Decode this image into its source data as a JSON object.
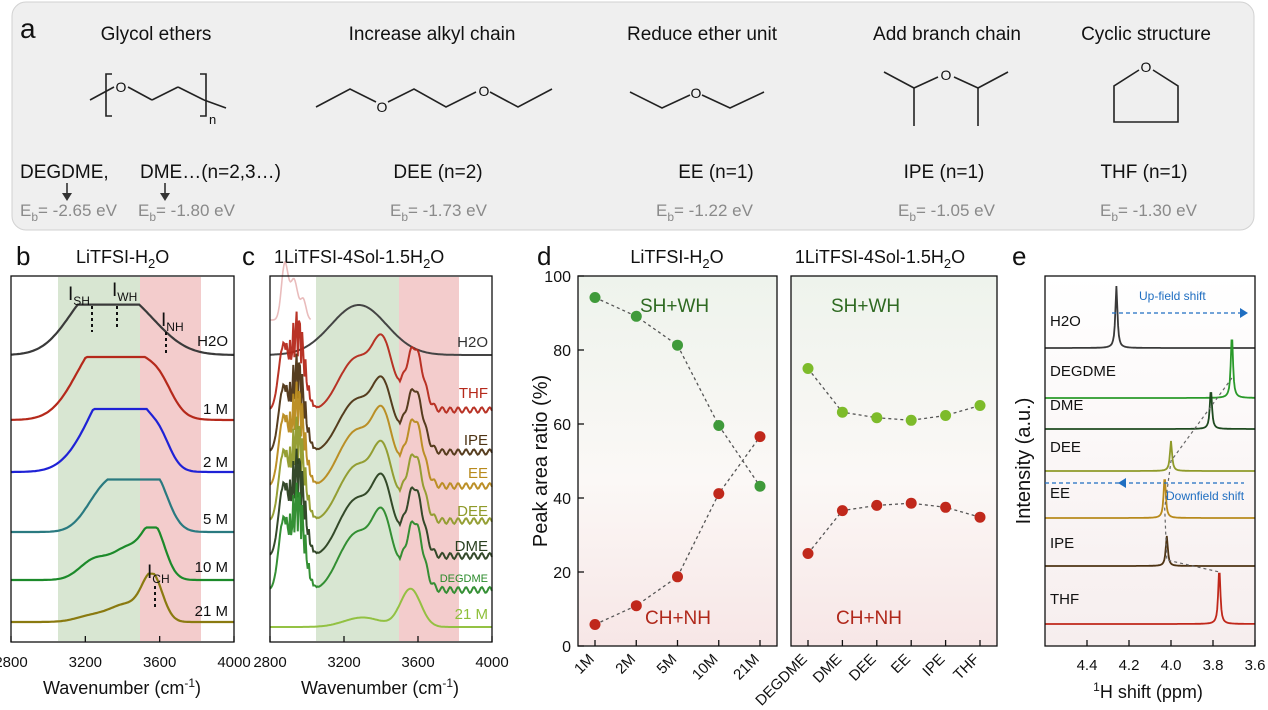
{
  "panel_a": {
    "letter": "a",
    "columns": [
      {
        "header": "Glycol ethers",
        "name": "DEGDME,",
        "name2": "DME…(n=2,3…)",
        "energy": "= -2.65 eV",
        "energy2": "= -1.80 eV"
      },
      {
        "header": "Increase alkyl chain",
        "name": "DEE (n=2)",
        "energy": "= -1.73 eV"
      },
      {
        "header": "Reduce ether unit",
        "name": "EE (n=1)",
        "energy": "= -1.22 eV"
      },
      {
        "header": "Add branch chain",
        "name": "IPE (n=1)",
        "energy": "= -1.05 eV"
      },
      {
        "header": "Cyclic structure",
        "name": "THF (n=1)",
        "energy": "= -1.30 eV"
      }
    ],
    "eb_symbol": "E",
    "eb_sub": "b",
    "repeat_label": "n",
    "atom_label": "O"
  },
  "chart_data": [
    {
      "panel": "b",
      "type": "line",
      "title": "LiTFSI-H2O",
      "xlabel": "Wavenumber (cm-1)",
      "xlim": [
        2800,
        4000
      ],
      "x_ticks": [
        "2800",
        "3200",
        "3600",
        "4000"
      ],
      "shaded_regions": [
        {
          "from": 3000,
          "to": 3480,
          "color": "#d8e6d2"
        },
        {
          "from": 3480,
          "to": 3800,
          "color": "#f3cccc"
        }
      ],
      "annotations": [
        "ISH",
        "IWH",
        "INH",
        "ICH"
      ],
      "series": [
        {
          "name": "H2O",
          "color": "#3a3a3a"
        },
        {
          "name": "1 M",
          "color": "#b5291b"
        },
        {
          "name": "2 M",
          "color": "#1f22d6"
        },
        {
          "name": "5 M",
          "color": "#2a7a80"
        },
        {
          "name": "10 M",
          "color": "#1c8a2a"
        },
        {
          "name": "21 M",
          "color": "#8a7a10"
        }
      ]
    },
    {
      "panel": "c",
      "type": "line",
      "title": "1LiTFSI-4Sol-1.5H2O",
      "xlabel": "Wavenumber (cm-1)",
      "xlim": [
        2800,
        4000
      ],
      "x_ticks": [
        "2800",
        "3200",
        "3600",
        "4000"
      ],
      "shaded_regions": [
        {
          "from": 3000,
          "to": 3480,
          "color": "#d8e6d2"
        },
        {
          "from": 3480,
          "to": 3800,
          "color": "#f3cccc"
        }
      ],
      "series": [
        {
          "name": "H2O",
          "color": "#444444"
        },
        {
          "name": "THF",
          "color": "#b5291b"
        },
        {
          "name": "IPE",
          "color": "#4e3414"
        },
        {
          "name": "EE",
          "color": "#b88a1c"
        },
        {
          "name": "DEE",
          "color": "#8f9a2a"
        },
        {
          "name": "DME",
          "color": "#2a4020"
        },
        {
          "name": "DEGDME",
          "color": "#2a8a2a"
        },
        {
          "name": "21 M",
          "color": "#8ebf3a"
        }
      ]
    },
    {
      "panel": "d",
      "type": "scatter",
      "ylabel": "Peak area ratio (%)",
      "ylim": [
        0,
        100
      ],
      "y_ticks": [
        "0",
        "20",
        "40",
        "60",
        "80",
        "100"
      ],
      "subplots": [
        {
          "title": "LiTFSI-H2O",
          "categories": [
            "1M",
            "2M",
            "5M",
            "10M",
            "21M"
          ],
          "series": [
            {
              "name": "SH+WH",
              "color": "#3f9a3a",
              "values": [
                94.2,
                89.1,
                81.3,
                59.6,
                43.2
              ]
            },
            {
              "name": "CH+NH",
              "color": "#c0281b",
              "values": [
                5.8,
                10.9,
                18.7,
                41.2,
                56.6
              ]
            }
          ]
        },
        {
          "title": "1LiTFSI-4Sol-1.5H2O",
          "categories": [
            "DEGDME",
            "DME",
            "DEE",
            "EE",
            "IPE",
            "THF"
          ],
          "series": [
            {
              "name": "SH+WH",
              "color": "#7dbb2a",
              "values": [
                75.0,
                63.2,
                61.7,
                61.0,
                62.3,
                65.0
              ]
            },
            {
              "name": "CH+NH",
              "color": "#c0281b",
              "values": [
                25.0,
                36.6,
                38.0,
                38.6,
                37.5,
                34.8
              ]
            }
          ]
        }
      ]
    },
    {
      "panel": "e",
      "type": "line",
      "xlabel": "1H shift (ppm)",
      "ylabel": "Intensity (a.u.)",
      "xlim": [
        4.6,
        3.6
      ],
      "x_ticks": [
        "4.4",
        "4.2",
        "4.0",
        "3.8",
        "3.6"
      ],
      "annotations": [
        "Up-field shift",
        "Downfield shift"
      ],
      "series": [
        {
          "name": "H2O",
          "color": "#3a3a3a",
          "peak_ppm": 4.26
        },
        {
          "name": "DEGDME",
          "color": "#2a9a2a",
          "peak_ppm": 3.71
        },
        {
          "name": "DME",
          "color": "#1f4a20",
          "peak_ppm": 3.81
        },
        {
          "name": "DEE",
          "color": "#8f9a2a",
          "peak_ppm": 4.0
        },
        {
          "name": "EE",
          "color": "#b88a1c",
          "peak_ppm": 4.03
        },
        {
          "name": "IPE",
          "color": "#4e3414",
          "peak_ppm": 4.02
        },
        {
          "name": "THF",
          "color": "#c0281b",
          "peak_ppm": 3.77
        }
      ]
    }
  ],
  "panel_letters": {
    "b": "b",
    "c": "c",
    "d": "d",
    "e": "e"
  }
}
